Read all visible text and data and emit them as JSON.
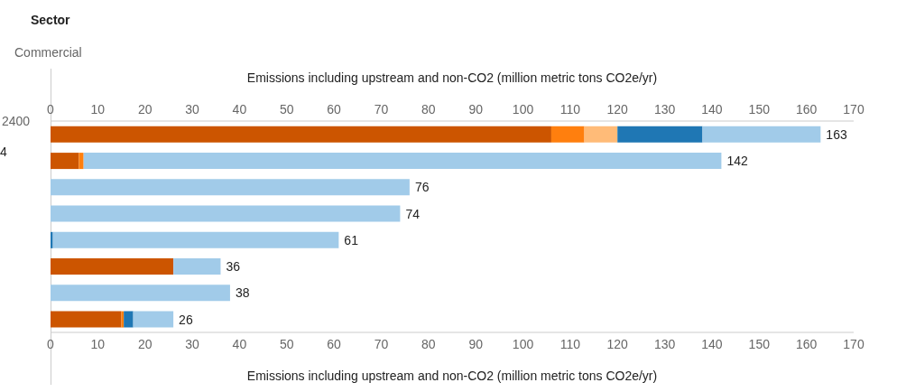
{
  "chart_data": {
    "type": "bar",
    "orientation": "horizontal",
    "stacked": true,
    "title": "Sector",
    "subtitle": "Commercial",
    "categories": [
      null,
      null,
      null,
      null,
      null,
      null,
      null,
      null
    ],
    "series": [
      {
        "color": "#cc5500",
        "values": [
          106,
          6,
          0,
          0,
          0,
          26,
          0,
          15
        ]
      },
      {
        "color": "#ff7f0e",
        "values": [
          7,
          1,
          0,
          0,
          0,
          0,
          0,
          0.5
        ]
      },
      {
        "color": "#ffbb78",
        "values": [
          7,
          0,
          0,
          0,
          0,
          0,
          0,
          0
        ]
      },
      {
        "color": "#1f77b4",
        "values": [
          18,
          0,
          0,
          0,
          0.5,
          0,
          0,
          2
        ]
      },
      {
        "color": "#a1cbe9",
        "values": [
          25,
          135,
          76,
          74,
          60.5,
          10,
          38,
          8.5
        ]
      }
    ],
    "totals": [
      "163",
      "142",
      "76",
      "74",
      "61",
      "36",
      "38",
      "26"
    ],
    "xlabel": "Emissions including upstream and non-CO2 (million metric tons CO2e/yr)",
    "x2label": "Emissions including upstream and non-CO2 (million metric tons CO2e/yr)",
    "xlim": [
      0,
      170
    ],
    "xticks": [
      0,
      10,
      20,
      30,
      40,
      50,
      60,
      70,
      80,
      90,
      100,
      110,
      120,
      130,
      140,
      150,
      160,
      170
    ],
    "x2lim": [
      0,
      170
    ],
    "x2ticks": [
      0,
      10,
      20,
      30,
      40,
      50,
      60,
      70,
      80,
      90,
      100,
      110,
      120,
      130,
      140,
      150,
      160,
      170
    ],
    "annotations": [
      "2400",
      "4"
    ],
    "grid": false
  }
}
